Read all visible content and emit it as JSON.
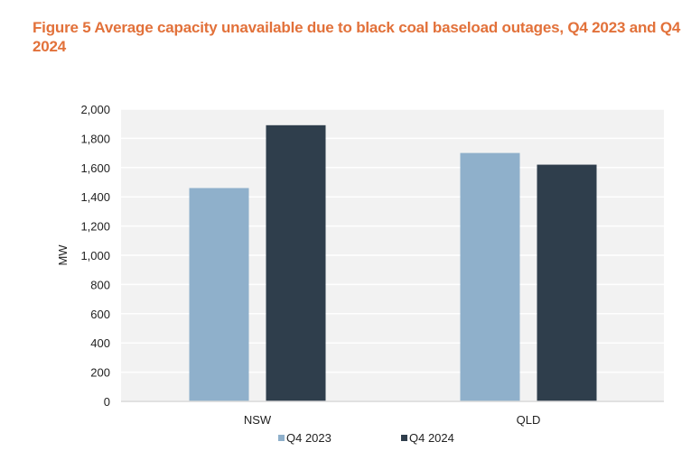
{
  "chart_data": {
    "type": "bar",
    "title": "Figure 5 Average capacity unavailable due to black coal baseload outages, Q4 2023 and Q4 2024",
    "xlabel": "",
    "ylabel": "MW",
    "ylim": [
      0,
      2000
    ],
    "yticks": [
      0,
      200,
      400,
      600,
      800,
      1000,
      1200,
      1400,
      1600,
      1800,
      2000
    ],
    "ytick_labels": [
      "0",
      "200",
      "400",
      "600",
      "800",
      "1,000",
      "1,200",
      "1,400",
      "1,600",
      "1,800",
      "2,000"
    ],
    "categories": [
      "NSW",
      "QLD"
    ],
    "series": [
      {
        "name": "Q4 2023",
        "color": "#8fb0cb",
        "values": [
          1460,
          1700
        ]
      },
      {
        "name": "Q4 2024",
        "color": "#2f3e4c",
        "values": [
          1890,
          1620
        ]
      }
    ],
    "grid": true,
    "legend_position": "bottom",
    "plot_background": "#f2f2f2",
    "gridline_color": "#ffffff",
    "title_color": "#e2713a"
  }
}
